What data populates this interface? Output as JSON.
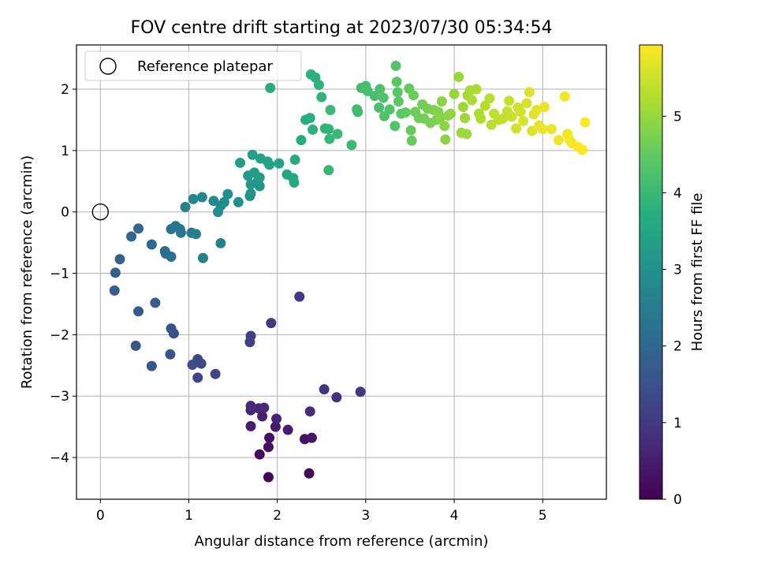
{
  "chart_data": {
    "type": "scatter",
    "title": "FOV centre drift starting at 2023/07/30 05:34:54",
    "xlabel": "Angular distance from reference (arcmin)",
    "ylabel": "Rotation from reference (arcmin)",
    "xlim": [
      -0.27,
      5.72
    ],
    "ylim": [
      -4.68,
      2.72
    ],
    "x_ticks": [
      0,
      1,
      2,
      3,
      4,
      5
    ],
    "y_ticks": [
      -4,
      -3,
      -2,
      -1,
      0,
      1,
      2
    ],
    "x_tick_labels": [
      "0",
      "1",
      "2",
      "3",
      "4",
      "5"
    ],
    "y_tick_labels": [
      "−4",
      "−3",
      "−2",
      "−1",
      "0",
      "1",
      "2"
    ],
    "grid": true,
    "legend": {
      "position": "top-left",
      "label": "Reference platepar"
    },
    "reference_point": {
      "x": 0,
      "y": 0
    },
    "colorbar": {
      "label": "Hours from first FF file",
      "colormap": "viridis",
      "range": [
        0,
        5.93
      ],
      "ticks": [
        0,
        1,
        2,
        3,
        4,
        5
      ],
      "tick_labels": [
        "0",
        "1",
        "2",
        "3",
        "4",
        "5"
      ]
    },
    "points": [
      [
        1.9,
        -4.32,
        0.05
      ],
      [
        2.36,
        -4.26,
        0.1
      ],
      [
        1.8,
        -3.95,
        0.15
      ],
      [
        1.9,
        -3.83,
        0.2
      ],
      [
        1.91,
        -3.68,
        0.25
      ],
      [
        2.31,
        -3.7,
        0.3
      ],
      [
        2.39,
        -3.68,
        0.35
      ],
      [
        1.98,
        -3.5,
        0.4
      ],
      [
        2.12,
        -3.55,
        0.45
      ],
      [
        1.7,
        -3.49,
        0.5
      ],
      [
        1.83,
        -3.33,
        0.55
      ],
      [
        1.99,
        -3.37,
        0.6
      ],
      [
        1.7,
        -3.23,
        0.62
      ],
      [
        1.79,
        -3.2,
        0.65
      ],
      [
        1.85,
        -3.19,
        0.7
      ],
      [
        1.7,
        -3.16,
        0.75
      ],
      [
        2.37,
        -3.25,
        0.8
      ],
      [
        2.67,
        -3.02,
        0.85
      ],
      [
        2.53,
        -2.89,
        0.9
      ],
      [
        2.94,
        -2.93,
        0.95
      ],
      [
        2.25,
        -1.38,
        1.0
      ],
      [
        1.93,
        -1.81,
        1.05
      ],
      [
        1.7,
        -2.02,
        1.1
      ],
      [
        1.69,
        -2.12,
        1.15
      ],
      [
        1.3,
        -2.64,
        1.2
      ],
      [
        1.1,
        -2.7,
        1.25
      ],
      [
        1.1,
        -2.4,
        1.3
      ],
      [
        1.14,
        -2.47,
        1.35
      ],
      [
        1.04,
        -2.49,
        1.4
      ],
      [
        0.83,
        -1.98,
        1.45
      ],
      [
        0.8,
        -1.9,
        1.5
      ],
      [
        0.79,
        -2.32,
        1.55
      ],
      [
        0.58,
        -2.51,
        1.6
      ],
      [
        0.4,
        -2.18,
        1.65
      ],
      [
        0.43,
        -1.62,
        1.7
      ],
      [
        0.62,
        -1.48,
        1.75
      ],
      [
        0.16,
        -1.28,
        1.8
      ],
      [
        0.17,
        -0.99,
        1.85
      ],
      [
        0.22,
        -0.77,
        1.9
      ],
      [
        0.35,
        -0.4,
        1.95
      ],
      [
        0.43,
        -0.27,
        2.0
      ],
      [
        0.58,
        -0.53,
        2.05
      ],
      [
        0.73,
        -0.64,
        2.1
      ],
      [
        0.74,
        -0.68,
        2.15
      ],
      [
        0.8,
        -0.73,
        2.2
      ],
      [
        0.8,
        -0.28,
        2.25
      ],
      [
        0.85,
        -0.23,
        2.3
      ],
      [
        0.9,
        -0.28,
        2.35
      ],
      [
        0.91,
        -0.34,
        2.4
      ],
      [
        1.03,
        -0.34,
        2.45
      ],
      [
        1.08,
        -0.36,
        2.5
      ],
      [
        1.16,
        -0.75,
        2.55
      ],
      [
        1.36,
        -0.51,
        2.6
      ],
      [
        0.96,
        0.08,
        2.65
      ],
      [
        1.05,
        0.21,
        2.7
      ],
      [
        1.15,
        0.24,
        2.75
      ],
      [
        1.28,
        0.18,
        2.8
      ],
      [
        1.33,
        0.0,
        2.85
      ],
      [
        1.36,
        0.1,
        2.88
      ],
      [
        1.4,
        0.16,
        2.9
      ],
      [
        1.44,
        0.29,
        2.95
      ],
      [
        1.56,
        0.16,
        3.0
      ],
      [
        1.69,
        0.26,
        3.05
      ],
      [
        1.7,
        0.3,
        3.08
      ],
      [
        1.8,
        0.42,
        3.1
      ],
      [
        1.78,
        0.5,
        3.15
      ],
      [
        1.7,
        0.45,
        3.18
      ],
      [
        1.67,
        0.59,
        3.2
      ],
      [
        1.74,
        0.64,
        3.25
      ],
      [
        1.8,
        0.56,
        3.28
      ],
      [
        1.58,
        0.8,
        3.3
      ],
      [
        1.72,
        0.93,
        3.35
      ],
      [
        1.81,
        0.87,
        3.38
      ],
      [
        1.89,
        0.82,
        3.4
      ],
      [
        1.91,
        0.77,
        3.45
      ],
      [
        2.02,
        0.79,
        3.48
      ],
      [
        2.11,
        0.61,
        3.5
      ],
      [
        2.18,
        0.55,
        3.55
      ],
      [
        2.19,
        0.48,
        3.58
      ],
      [
        2.2,
        0.85,
        3.6
      ],
      [
        2.27,
        1.17,
        3.65
      ],
      [
        1.92,
        2.02,
        3.68
      ],
      [
        2.32,
        1.5,
        3.7
      ],
      [
        2.37,
        1.53,
        3.72
      ],
      [
        2.4,
        1.34,
        3.75
      ],
      [
        2.38,
        2.24,
        3.78
      ],
      [
        2.43,
        2.19,
        3.8
      ],
      [
        2.47,
        2.07,
        3.82
      ],
      [
        2.5,
        1.87,
        3.85
      ],
      [
        2.54,
        1.36,
        3.88
      ],
      [
        2.58,
        1.35,
        3.9
      ],
      [
        2.58,
        0.68,
        3.92
      ],
      [
        2.59,
        1.19,
        3.95
      ],
      [
        2.6,
        1.66,
        3.98
      ],
      [
        2.68,
        1.27,
        4.0
      ],
      [
        2.84,
        1.09,
        4.02
      ],
      [
        2.9,
        1.67,
        4.05
      ],
      [
        2.91,
        1.63,
        4.08
      ],
      [
        2.95,
        2.02,
        4.1
      ],
      [
        3.0,
        2.05,
        4.12
      ],
      [
        3.02,
        1.97,
        4.15
      ],
      [
        3.1,
        1.89,
        4.18
      ],
      [
        3.15,
        1.7,
        4.2
      ],
      [
        3.16,
        2.0,
        4.22
      ],
      [
        3.2,
        1.86,
        4.25
      ],
      [
        3.21,
        1.56,
        4.28
      ],
      [
        3.27,
        1.67,
        4.3
      ],
      [
        3.33,
        1.4,
        4.32
      ],
      [
        3.34,
        2.38,
        4.35
      ],
      [
        3.35,
        2.12,
        4.38
      ],
      [
        3.36,
        1.95,
        4.4
      ],
      [
        3.37,
        1.8,
        4.42
      ],
      [
        3.4,
        1.6,
        4.45
      ],
      [
        3.45,
        1.62,
        4.48
      ],
      [
        3.49,
        2.01,
        4.5
      ],
      [
        3.51,
        1.33,
        4.52
      ],
      [
        3.52,
        1.16,
        4.55
      ],
      [
        3.54,
        1.9,
        4.58
      ],
      [
        3.56,
        1.63,
        4.6
      ],
      [
        3.6,
        1.53,
        4.62
      ],
      [
        3.64,
        1.75,
        4.65
      ],
      [
        3.66,
        1.52,
        4.68
      ],
      [
        3.7,
        1.68,
        4.7
      ],
      [
        3.73,
        1.45,
        4.72
      ],
      [
        3.77,
        1.66,
        4.75
      ],
      [
        3.8,
        1.5,
        4.78
      ],
      [
        3.82,
        1.63,
        4.8
      ],
      [
        3.84,
        1.53,
        4.82
      ],
      [
        3.86,
        1.8,
        4.85
      ],
      [
        3.89,
        1.4,
        4.88
      ],
      [
        3.9,
        1.18,
        4.9
      ],
      [
        3.93,
        1.57,
        4.92
      ],
      [
        3.96,
        1.6,
        4.95
      ],
      [
        4.0,
        1.92,
        4.98
      ],
      [
        4.05,
        2.2,
        5.0
      ],
      [
        4.08,
        1.29,
        5.02
      ],
      [
        4.1,
        1.71,
        5.05
      ],
      [
        4.12,
        1.53,
        5.08
      ],
      [
        4.14,
        1.27,
        5.1
      ],
      [
        4.15,
        1.9,
        5.12
      ],
      [
        4.18,
        1.98,
        5.15
      ],
      [
        4.2,
        1.82,
        5.18
      ],
      [
        4.25,
        2.0,
        5.2
      ],
      [
        4.28,
        1.6,
        5.22
      ],
      [
        4.3,
        1.52,
        5.25
      ],
      [
        4.35,
        1.73,
        5.28
      ],
      [
        4.4,
        1.85,
        5.3
      ],
      [
        4.42,
        1.42,
        5.32
      ],
      [
        4.45,
        1.6,
        5.35
      ],
      [
        4.5,
        1.5,
        5.38
      ],
      [
        4.55,
        1.52,
        5.4
      ],
      [
        4.6,
        1.64,
        5.42
      ],
      [
        4.62,
        1.81,
        5.45
      ],
      [
        4.65,
        1.55,
        5.48
      ],
      [
        4.7,
        1.36,
        5.5
      ],
      [
        4.72,
        1.7,
        5.52
      ],
      [
        4.75,
        1.63,
        5.55
      ],
      [
        4.78,
        1.48,
        5.58
      ],
      [
        4.82,
        1.77,
        5.6
      ],
      [
        4.85,
        1.95,
        5.62
      ],
      [
        4.88,
        1.32,
        5.65
      ],
      [
        4.9,
        1.59,
        5.68
      ],
      [
        4.93,
        1.66,
        5.7
      ],
      [
        4.96,
        1.41,
        5.72
      ],
      [
        5.0,
        1.35,
        5.74
      ],
      [
        5.02,
        1.71,
        5.76
      ],
      [
        5.1,
        1.35,
        5.78
      ],
      [
        5.18,
        1.17,
        5.8
      ],
      [
        5.25,
        1.88,
        5.82
      ],
      [
        5.28,
        1.27,
        5.84
      ],
      [
        5.3,
        1.18,
        5.86
      ],
      [
        5.33,
        1.12,
        5.88
      ],
      [
        5.4,
        1.06,
        5.9
      ],
      [
        5.45,
        1.01,
        5.91
      ],
      [
        5.48,
        1.46,
        5.92
      ]
    ]
  }
}
